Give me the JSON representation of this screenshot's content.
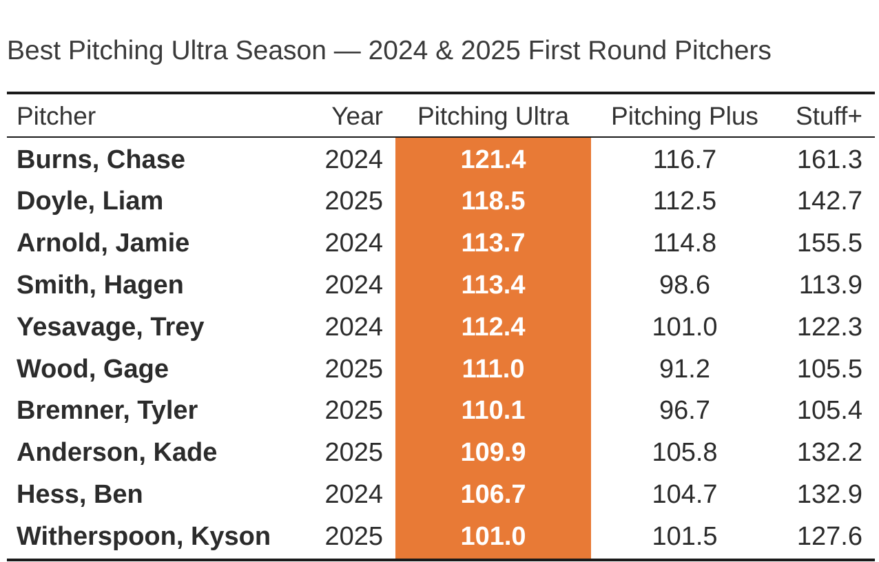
{
  "title": "Best Pitching Ultra Season — 2024 & 2025 First Round Pitchers",
  "colors": {
    "highlight": "#e87a36",
    "rule": "#1a1a1a",
    "text": "#2b2b2b"
  },
  "chart_data": {
    "type": "table",
    "title": "Best Pitching Ultra Season — 2024 & 2025 First Round Pitchers",
    "columns": [
      "Pitcher",
      "Year",
      "Pitching Ultra",
      "Pitching Plus",
      "Stuff+"
    ],
    "highlighted_column": "Pitching Ultra",
    "rows": [
      {
        "pitcher": "Burns, Chase",
        "year": "2024",
        "ultra": "121.4",
        "plus": "116.7",
        "stuff": "161.3"
      },
      {
        "pitcher": "Doyle, Liam",
        "year": "2025",
        "ultra": "118.5",
        "plus": "112.5",
        "stuff": "142.7"
      },
      {
        "pitcher": "Arnold, Jamie",
        "year": "2024",
        "ultra": "113.7",
        "plus": "114.8",
        "stuff": "155.5"
      },
      {
        "pitcher": "Smith, Hagen",
        "year": "2024",
        "ultra": "113.4",
        "plus": "98.6",
        "stuff": "113.9"
      },
      {
        "pitcher": "Yesavage, Trey",
        "year": "2024",
        "ultra": "112.4",
        "plus": "101.0",
        "stuff": "122.3"
      },
      {
        "pitcher": "Wood, Gage",
        "year": "2025",
        "ultra": "111.0",
        "plus": "91.2",
        "stuff": "105.5"
      },
      {
        "pitcher": "Bremner, Tyler",
        "year": "2025",
        "ultra": "110.1",
        "plus": "96.7",
        "stuff": "105.4"
      },
      {
        "pitcher": "Anderson, Kade",
        "year": "2025",
        "ultra": "109.9",
        "plus": "105.8",
        "stuff": "132.2"
      },
      {
        "pitcher": "Hess, Ben",
        "year": "2024",
        "ultra": "106.7",
        "plus": "104.7",
        "stuff": "132.9"
      },
      {
        "pitcher": "Witherspoon, Kyson",
        "year": "2025",
        "ultra": "101.0",
        "plus": "101.5",
        "stuff": "127.6"
      }
    ]
  }
}
